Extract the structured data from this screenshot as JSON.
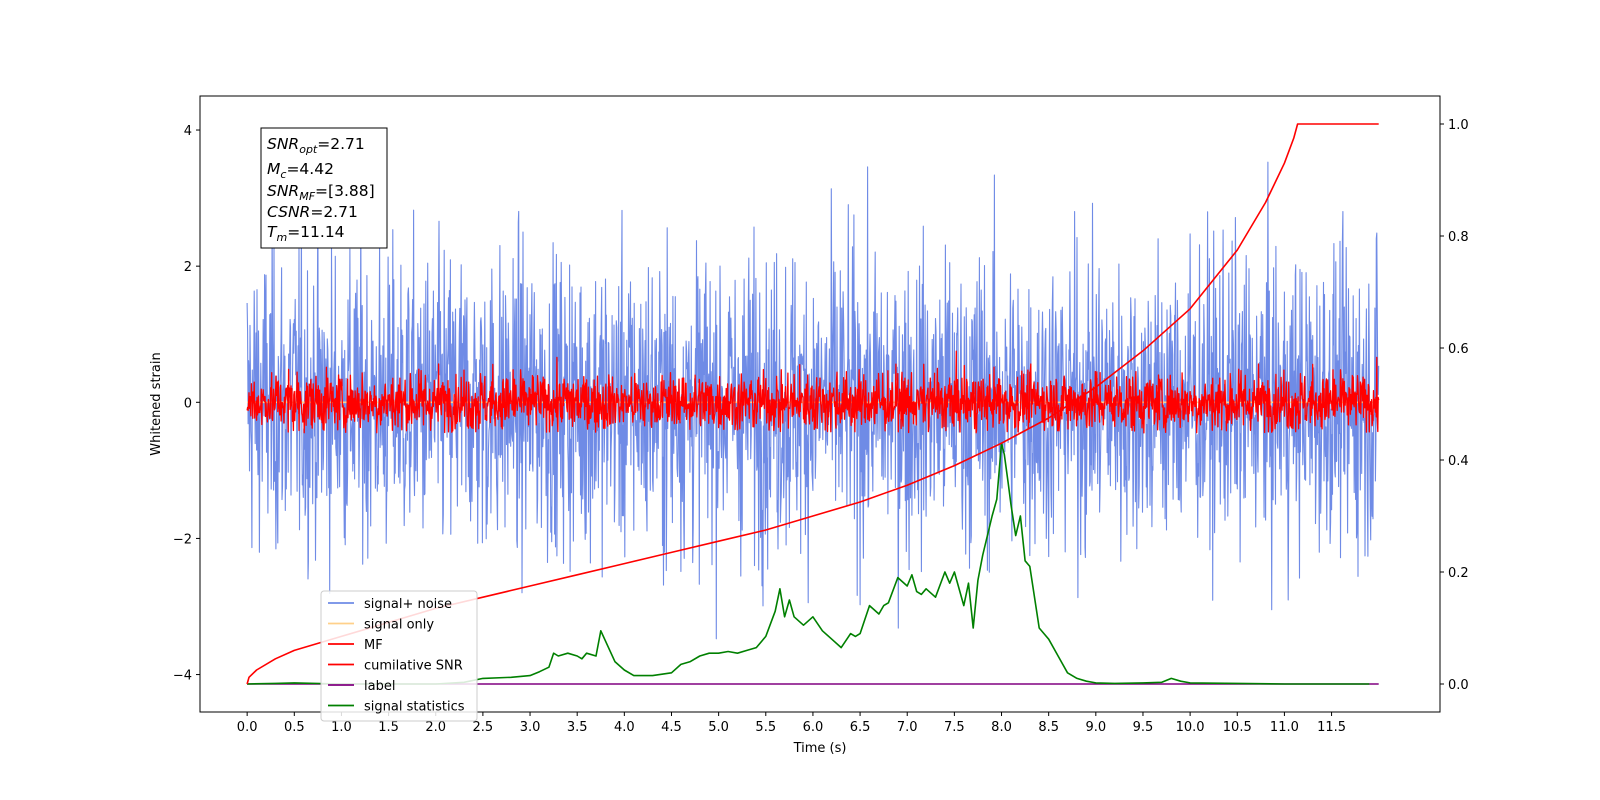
{
  "chart_data": {
    "type": "line",
    "xlabel": "Time (s)",
    "ylabel": "Whitened strain",
    "xlim": [
      -0.5,
      12.65
    ],
    "ylim": [
      -4.55,
      4.5
    ],
    "y2lim": [
      -0.05,
      1.05
    ],
    "x_ticks": [
      "0.0",
      "0.5",
      "1.0",
      "1.5",
      "2.0",
      "2.5",
      "3.0",
      "3.5",
      "4.0",
      "4.5",
      "5.0",
      "5.5",
      "6.0",
      "6.5",
      "7.0",
      "7.5",
      "8.0",
      "8.5",
      "9.0",
      "9.5",
      "10.0",
      "10.5",
      "11.0",
      "11.5"
    ],
    "y_ticks": [
      -4,
      -2,
      0,
      2,
      4
    ],
    "y2_ticks": [
      "0.0",
      "0.2",
      "0.4",
      "0.6",
      "0.8",
      "1.0"
    ],
    "annotation": {
      "snr_opt": {
        "sym": "SNR",
        "sub": "opt",
        "val": "=2.71"
      },
      "mc": {
        "sym": "M",
        "sub": "c",
        "val": "=4.42"
      },
      "snr_mf": {
        "sym": "SNR",
        "sub": "MF",
        "val": "=[3.88]"
      },
      "csnr": {
        "sym": "CSNR",
        "sub": "",
        "val": "=2.71"
      },
      "tm": {
        "sym": "T",
        "sub": "m",
        "val": "=11.14"
      }
    },
    "legend_position": "lower-left",
    "series": [
      {
        "name": "signal+ noise",
        "axis": "left",
        "color": "#6f8be6",
        "kind": "noise",
        "x_range": [
          0,
          12
        ],
        "std": 1.1,
        "peak_range": [
          -3.8,
          4.05
        ]
      },
      {
        "name": "signal only",
        "axis": "left",
        "color": "#ffd08a",
        "kind": "flat",
        "x_range": [
          0,
          12
        ]
      },
      {
        "name": "MF",
        "axis": "left",
        "color": "#ff0000",
        "kind": "noise",
        "x_range": [
          0,
          12
        ],
        "std": 0.22,
        "peak_range": [
          -0.45,
          0.97
        ]
      },
      {
        "name": "cumilative SNR",
        "axis": "right",
        "color": "#ff0000",
        "kind": "line",
        "x": [
          0,
          0.02,
          0.1,
          0.3,
          0.5,
          1.0,
          1.5,
          2.0,
          2.5,
          3.0,
          3.5,
          4.0,
          4.5,
          5.0,
          5.5,
          6.0,
          6.5,
          7.0,
          7.5,
          8.0,
          8.5,
          9.0,
          9.5,
          10.0,
          10.5,
          10.8,
          11.0,
          11.1,
          11.14,
          12.0
        ],
        "y": [
          0.0,
          0.012,
          0.025,
          0.045,
          0.06,
          0.085,
          0.11,
          0.135,
          0.155,
          0.175,
          0.195,
          0.215,
          0.235,
          0.255,
          0.275,
          0.3,
          0.325,
          0.355,
          0.39,
          0.43,
          0.475,
          0.53,
          0.595,
          0.67,
          0.775,
          0.86,
          0.93,
          0.975,
          1.0,
          1.0
        ]
      },
      {
        "name": "label",
        "axis": "right",
        "color": "#800080",
        "kind": "line",
        "x": [
          0,
          12
        ],
        "y": [
          0.0,
          0.0
        ]
      },
      {
        "name": "signal statistics",
        "axis": "right",
        "color": "#008000",
        "kind": "line",
        "x": [
          0,
          0.3,
          0.5,
          1.0,
          1.5,
          2.0,
          2.3,
          2.5,
          2.8,
          3.0,
          3.1,
          3.2,
          3.25,
          3.3,
          3.4,
          3.5,
          3.55,
          3.6,
          3.7,
          3.75,
          3.9,
          4.0,
          4.1,
          4.3,
          4.5,
          4.6,
          4.7,
          4.8,
          4.9,
          5.0,
          5.1,
          5.2,
          5.3,
          5.4,
          5.5,
          5.6,
          5.65,
          5.7,
          5.75,
          5.8,
          5.9,
          6.0,
          6.1,
          6.2,
          6.3,
          6.4,
          6.45,
          6.5,
          6.6,
          6.7,
          6.75,
          6.8,
          6.9,
          7.0,
          7.05,
          7.1,
          7.15,
          7.2,
          7.3,
          7.4,
          7.45,
          7.5,
          7.6,
          7.65,
          7.7,
          7.75,
          7.8,
          7.9,
          7.95,
          8.0,
          8.03,
          8.07,
          8.1,
          8.15,
          8.2,
          8.25,
          8.3,
          8.4,
          8.5,
          8.6,
          8.7,
          8.8,
          8.9,
          9.0,
          9.2,
          9.5,
          9.7,
          9.8,
          9.9,
          10.0,
          10.5,
          11.0,
          11.5,
          11.9
        ],
        "y": [
          0.0,
          0.001,
          0.002,
          0.0,
          0.0,
          0.0,
          0.003,
          0.01,
          0.012,
          0.015,
          0.022,
          0.03,
          0.055,
          0.05,
          0.055,
          0.05,
          0.045,
          0.055,
          0.05,
          0.095,
          0.04,
          0.025,
          0.015,
          0.015,
          0.02,
          0.035,
          0.04,
          0.05,
          0.055,
          0.055,
          0.058,
          0.055,
          0.06,
          0.065,
          0.085,
          0.13,
          0.17,
          0.12,
          0.15,
          0.12,
          0.105,
          0.12,
          0.095,
          0.08,
          0.065,
          0.09,
          0.085,
          0.09,
          0.14,
          0.125,
          0.14,
          0.145,
          0.19,
          0.175,
          0.195,
          0.165,
          0.16,
          0.17,
          0.155,
          0.2,
          0.18,
          0.2,
          0.14,
          0.18,
          0.1,
          0.185,
          0.23,
          0.3,
          0.33,
          0.43,
          0.41,
          0.36,
          0.32,
          0.265,
          0.3,
          0.22,
          0.21,
          0.1,
          0.08,
          0.05,
          0.02,
          0.01,
          0.005,
          0.002,
          0.001,
          0.002,
          0.003,
          0.01,
          0.005,
          0.002,
          0.001,
          0.0,
          0.0,
          0.0
        ]
      }
    ]
  }
}
